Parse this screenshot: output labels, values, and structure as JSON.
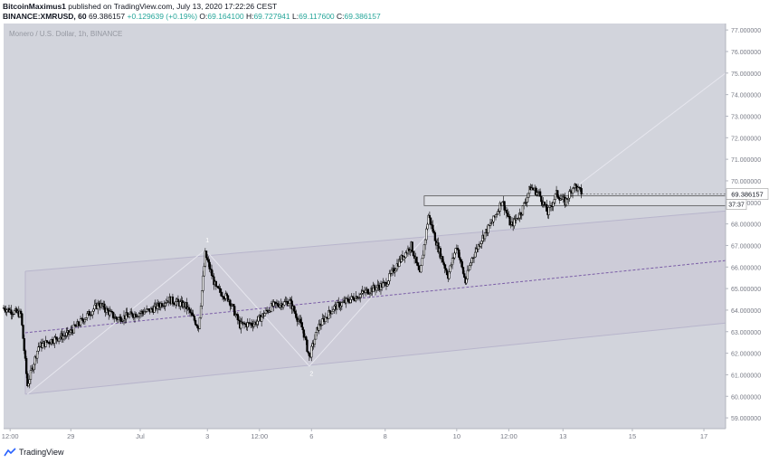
{
  "header": {
    "line1_user": "BitcoinMaximus1",
    "line1_rest": "published on TradingView.com, July 13, 2020 17:22:26 CEST",
    "symbol": "BINANCE:XMRUSD, 60",
    "last": "69.386157",
    "change": "+0.129639 (+0.19%)",
    "o_label": "O:",
    "o_val": "69.164100",
    "h_label": "H:",
    "h_val": "69.727941",
    "l_label": "L:",
    "l_val": "69.117600",
    "c_label": "C:",
    "c_val": "69.386157"
  },
  "watermark": "Monero / U.S. Dollar, 1h, BINANCE",
  "footer": {
    "brand": "TradingView"
  },
  "colors": {
    "plot_bg": "#d2d4dc",
    "candle": "#000000",
    "channel_line": "#b8b5cc",
    "channel_fill": "#c9c7d6",
    "midline": "#7b5ea7",
    "label_bg": "#ffffff"
  },
  "chart_data": {
    "type": "candlestick",
    "ylim": [
      58.5,
      77.3
    ],
    "y_ticks": [
      "77.000000",
      "76.000000",
      "75.000000",
      "74.000000",
      "73.000000",
      "72.000000",
      "71.000000",
      "70.000000",
      "69.000000",
      "68.000000",
      "67.000000",
      "66.000000",
      "65.000000",
      "64.000000",
      "63.000000",
      "62.000000",
      "61.000000",
      "60.000000",
      "59.000000"
    ],
    "x_ticks": [
      {
        "label": "12:00",
        "t": 0.3
      },
      {
        "label": "29",
        "t": 3.1
      },
      {
        "label": "Jul",
        "t": 6.3
      },
      {
        "label": "3",
        "t": 9.4
      },
      {
        "label": "12:00",
        "t": 11.8
      },
      {
        "label": "6",
        "t": 14.2
      },
      {
        "label": "8",
        "t": 17.6
      },
      {
        "label": "10",
        "t": 20.9
      },
      {
        "label": "12:00",
        "t": 23.3
      },
      {
        "label": "13",
        "t": 25.8
      },
      {
        "label": "15",
        "t": 29.0
      },
      {
        "label": "17",
        "t": 32.3
      }
    ],
    "x_range": [
      0,
      33.3
    ],
    "price_path": [
      [
        0.0,
        64.1
      ],
      [
        0.8,
        63.8
      ],
      [
        1.1,
        60.5
      ],
      [
        1.6,
        62.3
      ],
      [
        2.2,
        62.6
      ],
      [
        3.0,
        62.9
      ],
      [
        3.6,
        63.5
      ],
      [
        4.4,
        64.3
      ],
      [
        5.2,
        63.6
      ],
      [
        6.0,
        63.8
      ],
      [
        6.8,
        64.0
      ],
      [
        7.6,
        64.5
      ],
      [
        8.4,
        64.2
      ],
      [
        9.0,
        63.2
      ],
      [
        9.3,
        66.6
      ],
      [
        9.8,
        65.0
      ],
      [
        10.4,
        64.5
      ],
      [
        10.9,
        63.3
      ],
      [
        11.6,
        63.4
      ],
      [
        12.4,
        64.2
      ],
      [
        13.2,
        64.4
      ],
      [
        13.8,
        63.1
      ],
      [
        14.1,
        61.8
      ],
      [
        14.5,
        63.2
      ],
      [
        15.2,
        64.1
      ],
      [
        16.0,
        64.5
      ],
      [
        16.8,
        64.9
      ],
      [
        17.6,
        65.2
      ],
      [
        18.2,
        66.2
      ],
      [
        18.8,
        67.0
      ],
      [
        19.2,
        65.6
      ],
      [
        19.6,
        68.4
      ],
      [
        20.0,
        67.0
      ],
      [
        20.5,
        65.6
      ],
      [
        20.9,
        67.0
      ],
      [
        21.3,
        65.3
      ],
      [
        21.6,
        66.4
      ],
      [
        22.1,
        67.4
      ],
      [
        22.6,
        68.2
      ],
      [
        23.0,
        69.1
      ],
      [
        23.4,
        67.9
      ],
      [
        23.9,
        68.6
      ],
      [
        24.3,
        69.7
      ],
      [
        24.7,
        69.4
      ],
      [
        25.1,
        68.5
      ],
      [
        25.5,
        69.4
      ],
      [
        25.9,
        69.0
      ],
      [
        26.3,
        69.8
      ],
      [
        26.7,
        69.4
      ]
    ],
    "last_price": "69.386157",
    "countdown": "37:37",
    "wave_labels": [
      {
        "text": "1",
        "t": 9.4,
        "price": 67.15
      },
      {
        "text": "2",
        "t": 14.2,
        "price": 60.95
      }
    ],
    "channel": {
      "upper": [
        [
          1.0,
          65.8
        ],
        [
          33.3,
          68.6
        ]
      ],
      "lower": [
        [
          1.0,
          60.1
        ],
        [
          33.3,
          63.4
        ]
      ],
      "middle": [
        [
          1.0,
          62.95
        ],
        [
          33.3,
          66.3
        ]
      ]
    },
    "zigzag": [
      [
        1.1,
        60.1
      ],
      [
        9.3,
        66.8
      ],
      [
        14.1,
        61.4
      ],
      [
        20.0,
        68.0
      ]
    ],
    "extension_line": [
      [
        26.5,
        69.8
      ],
      [
        33.3,
        75.0
      ]
    ],
    "resistance_box": {
      "t0": 19.4,
      "t1": 33.3,
      "p0": 68.85,
      "p1": 69.3
    }
  }
}
